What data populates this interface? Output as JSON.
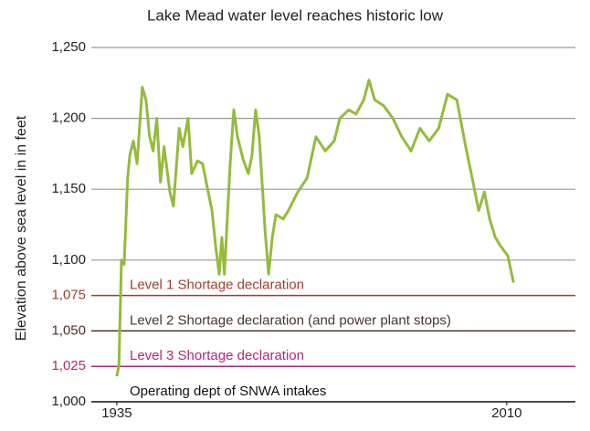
{
  "chart_data": {
    "type": "line",
    "title": "Lake Mead water level reaches historic low",
    "y_label": "Elevation above sea level in  in feet",
    "xlim": [
      1930.1,
      2023.2
    ],
    "xticks": [
      1935,
      2010
    ],
    "ylim": [
      1000,
      1250
    ],
    "yticks": [
      {
        "value": 1000,
        "label": "1,000"
      },
      {
        "value": 1025,
        "label": "1,025"
      },
      {
        "value": 1050,
        "label": "1,050"
      },
      {
        "value": 1075,
        "label": "1,075"
      },
      {
        "value": 1100,
        "label": "1,100"
      },
      {
        "value": 1150,
        "label": "1,150"
      },
      {
        "value": 1200,
        "label": "1,200"
      },
      {
        "value": 1250,
        "label": "1,250"
      }
    ],
    "grid": true,
    "reference_lines": [
      {
        "value": 1075,
        "label": "Level 1 Shortage declaration",
        "color": "#9e3d2c"
      },
      {
        "value": 1050,
        "label": "Level 2 Shortage declaration (and power plant stops)",
        "color": "#4a3328"
      },
      {
        "value": 1025,
        "label": "Level 3 Shortage declaration",
        "color": "#b5247a"
      },
      {
        "value": 1000,
        "label": "Operating dept of SNWA intakes",
        "color": "#111111"
      }
    ],
    "series": [
      {
        "color": "#94bb3c",
        "x": [
          1935,
          1935.4,
          1935.9,
          1936.4,
          1937.1,
          1937.5,
          1938.2,
          1938.9,
          1939.9,
          1940.6,
          1941.3,
          1942,
          1942.7,
          1943.4,
          1944.1,
          1945.2,
          1945.9,
          1947,
          1947.7,
          1948.7,
          1949.4,
          1950.5,
          1951.5,
          1952.2,
          1953.3,
          1954,
          1954.7,
          1955.2,
          1955.7,
          1956.8,
          1957.5,
          1958.2,
          1959.3,
          1960.3,
          1961,
          1961.7,
          1962.4,
          1963.5,
          1964.2,
          1964.9,
          1965.6,
          1967,
          1968,
          1969.8,
          1971.6,
          1973.3,
          1975.1,
          1976.8,
          1977.9,
          1979.6,
          1981,
          1982.5,
          1983.5,
          1984.6,
          1986.3,
          1988.1,
          1989.8,
          1991.6,
          1993.3,
          1995.1,
          1996.9,
          1998.6,
          2000.4,
          2002.1,
          2003.5,
          2004.6,
          2005.7,
          2006.7,
          2007.8,
          2008.8,
          2010.2,
          2011.3
        ],
        "values": [
          1018,
          1026,
          1100,
          1097,
          1158,
          1174,
          1184,
          1168,
          1222,
          1213,
          1187,
          1177,
          1200,
          1155,
          1180,
          1148,
          1138,
          1193,
          1180,
          1200,
          1161,
          1170,
          1168,
          1155,
          1135,
          1110,
          1090,
          1116,
          1090,
          1168,
          1206,
          1187,
          1171,
          1161,
          1174,
          1206,
          1187,
          1122,
          1090,
          1116,
          1132,
          1129,
          1135,
          1148,
          1158,
          1187,
          1177,
          1184,
          1200,
          1206,
          1203,
          1213,
          1227,
          1213,
          1209,
          1200,
          1187,
          1177,
          1193,
          1184,
          1193,
          1217,
          1213,
          1180,
          1155,
          1135,
          1148,
          1129,
          1116,
          1110,
          1103,
          1084
        ]
      }
    ]
  }
}
